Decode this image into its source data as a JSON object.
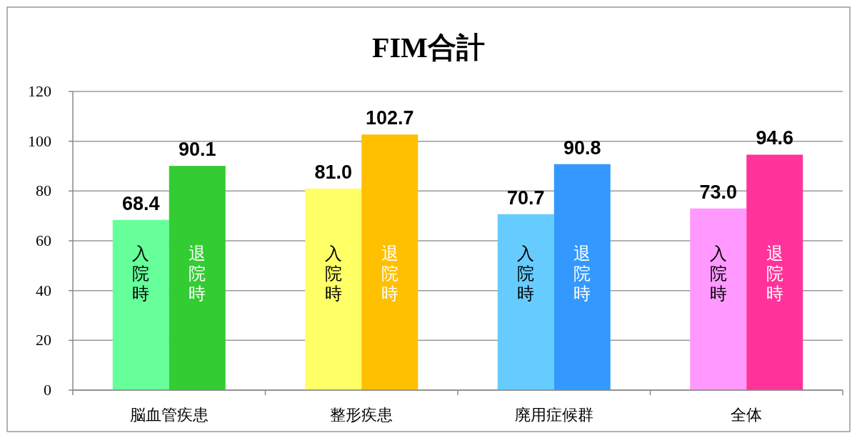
{
  "chart_data": {
    "type": "bar",
    "title": "FIM合計",
    "categories": [
      "脳血管疾患",
      "整形疾患",
      "廃用症候群",
      "全体"
    ],
    "series": [
      {
        "name": "入院時",
        "colors": [
          "#66ff99",
          "#ffff66",
          "#66ccff",
          "#ff99ff"
        ],
        "values": [
          68.4,
          81.0,
          70.7,
          73.0
        ],
        "value_labels": [
          "68.4",
          "81.0",
          "70.7",
          "73.0"
        ]
      },
      {
        "name": "退院時",
        "colors": [
          "#33cc33",
          "#ffc000",
          "#3399ff",
          "#ff3399"
        ],
        "values": [
          90.1,
          102.7,
          90.8,
          94.6
        ],
        "value_labels": [
          "90.1",
          "102.7",
          "90.8",
          "94.6"
        ]
      }
    ],
    "ylim": [
      0,
      120
    ],
    "yticks": [
      0,
      20,
      40,
      60,
      80,
      100,
      120
    ],
    "grid": "y"
  }
}
